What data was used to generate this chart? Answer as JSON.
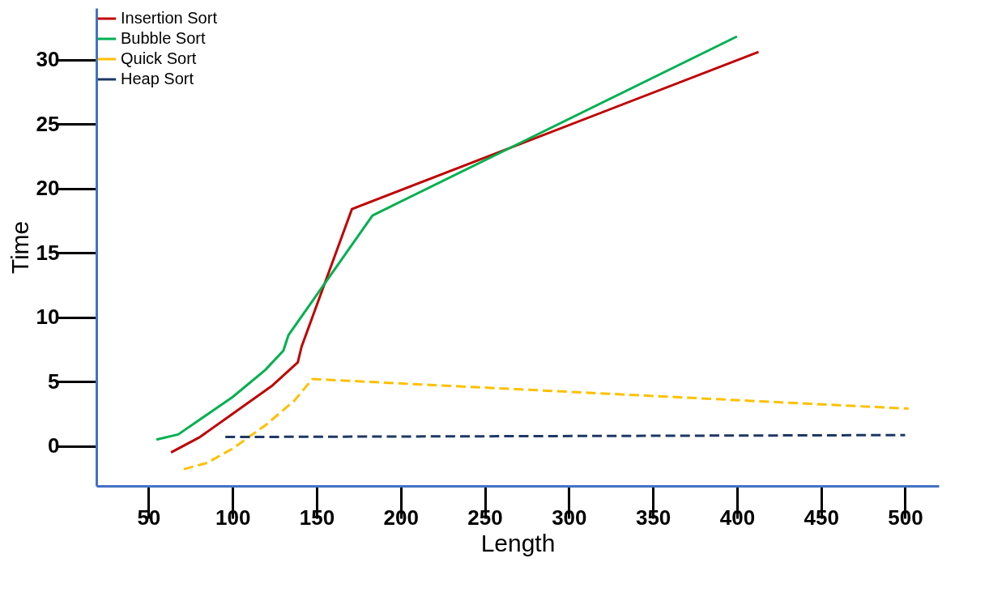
{
  "chart_data": {
    "type": "line",
    "xlabel": "Length",
    "ylabel": "Time",
    "xlim": [
      19,
      520
    ],
    "ylim": [
      -3.1,
      34
    ],
    "xticks": [
      50,
      100,
      150,
      200,
      250,
      300,
      350,
      400,
      450,
      500
    ],
    "yticks": [
      0,
      5,
      10,
      15,
      20,
      25,
      30
    ],
    "grid": false,
    "legend": "top left",
    "series": [
      {
        "name": "Insertion Sort",
        "color": "#c00000",
        "line_style": "solid",
        "x": [
          63.4,
          80.6,
          100,
          123.7,
          138.8,
          141,
          171,
          412.8
        ],
        "values": [
          -0.5,
          0.7,
          2.5,
          4.7,
          6.5,
          7.7,
          18.4,
          30.6
        ]
      },
      {
        "name": "Bubble Sort",
        "color": "#00b050",
        "line_style": "solid",
        "x": [
          54.7,
          67.7,
          100,
          119.4,
          130.2,
          133.2,
          183.2,
          400
        ],
        "values": [
          0.5,
          0.9,
          3.8,
          5.9,
          7.4,
          8.6,
          17.9,
          31.8
        ]
      },
      {
        "name": "Quick Sort",
        "color": "#ffc000",
        "line_style": "dashed",
        "x": [
          71,
          85,
          100,
          119.4,
          136.6,
          147.4,
          502
        ],
        "values": [
          -1.8,
          -1.3,
          -0.2,
          1.6,
          3.5,
          5.2,
          2.9
        ]
      },
      {
        "name": "Heap Sort",
        "color": "#1f3864",
        "line_style": "dashed",
        "x": [
          95.7,
          500
        ],
        "values": [
          0.7,
          0.85
        ]
      }
    ]
  }
}
